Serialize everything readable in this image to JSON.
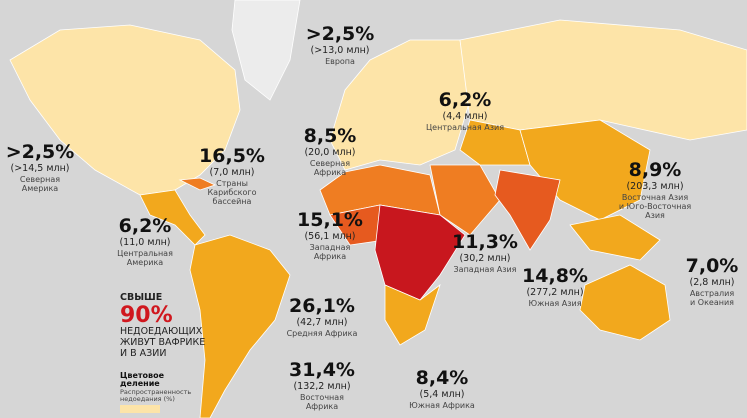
{
  "regions": [
    {
      "pct": ">2,5%",
      "count": "(>14,5 млн)",
      "name": [
        "Северная",
        "Америка"
      ]
    },
    {
      "pct": "16,5%",
      "count": "(7,0 млн)",
      "name": [
        "Страны",
        "Карибского",
        "бассейна"
      ]
    },
    {
      "pct": "6,2%",
      "count": "(11,0 млн)",
      "name": [
        "Центральная",
        "Америка"
      ]
    },
    {
      "pct": ">2,5%",
      "count": "(>13,0 млн)",
      "name": [
        "Европа"
      ]
    },
    {
      "pct": "8,5%",
      "count": "(20,0 млн)",
      "name": [
        "Северная",
        "Африка"
      ]
    },
    {
      "pct": "6,2%",
      "count": "(4,4 млн)",
      "name": [
        "Центральная Азия"
      ]
    },
    {
      "pct": "15,1%",
      "count": "(56,1 млн)",
      "name": [
        "Западная",
        "Африка"
      ]
    },
    {
      "pct": "11,3%",
      "count": "(30,2 млн)",
      "name": [
        "Западная Азия"
      ]
    },
    {
      "pct": "8,9%",
      "count": "(203,3 млн)",
      "name": [
        "Восточная Азия",
        "и Юго-Восточная",
        "Азия"
      ]
    },
    {
      "pct": "14,8%",
      "count": "(277,2 млн)",
      "name": [
        "Южная Азия"
      ]
    },
    {
      "pct": "7,0%",
      "count": "(2,8 млн)",
      "name": [
        "Австралия",
        "и Океания"
      ]
    },
    {
      "pct": "26,1%",
      "count": "(42,7 млн)",
      "name": [
        "Средняя Африка"
      ]
    },
    {
      "pct": "31,4%",
      "count": "(132,2 млн)",
      "name": [
        "Восточная",
        "Африка"
      ]
    },
    {
      "pct": "8,4%",
      "count": "(5,4 млн)",
      "name": [
        "Южная Африка"
      ]
    }
  ],
  "callout": {
    "top": "СВЫШЕ",
    "big": "90%",
    "lines": [
      "НЕДОЕДАЮЩИХ",
      "ЖИВУТ ВАФРИКЕ",
      "И В АЗИИ"
    ]
  },
  "legend": {
    "title": [
      "Цветовое",
      "деление"
    ],
    "subtitle": [
      "Распространенность",
      "недоедания (%)"
    ]
  }
}
